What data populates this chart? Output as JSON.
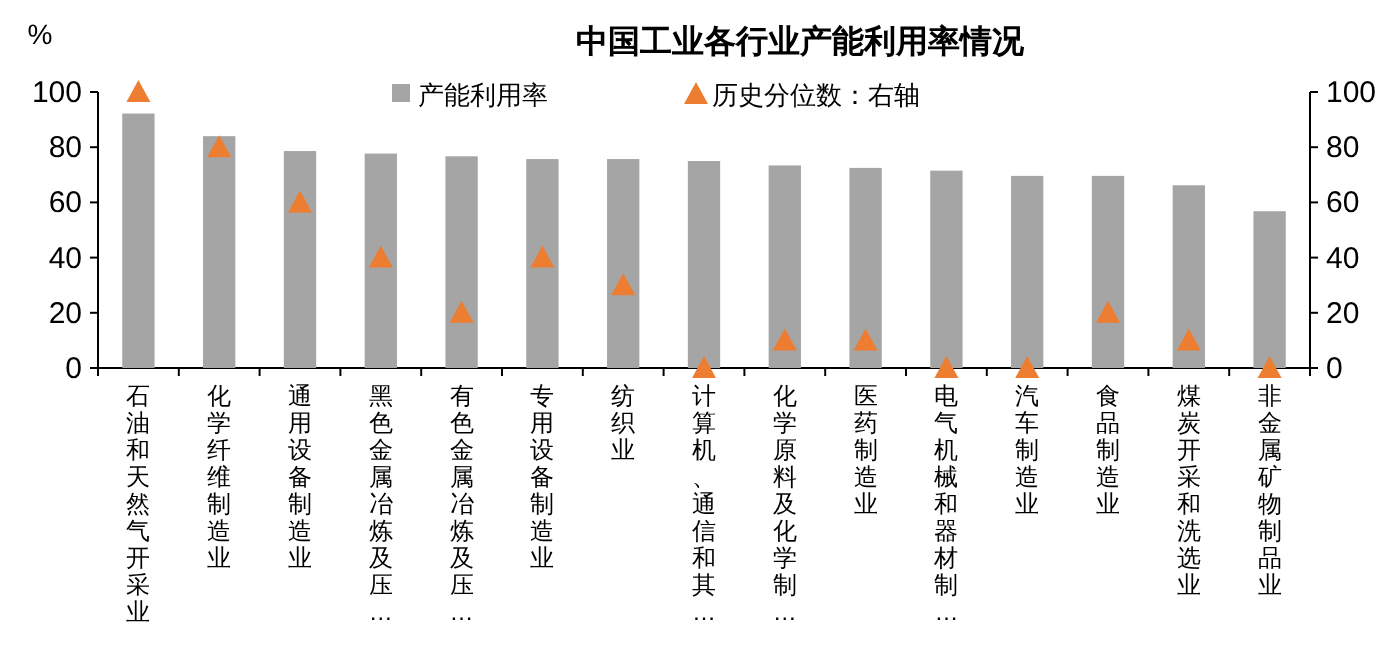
{
  "chart_data": {
    "type": "bar",
    "title": "中国工业各行业产能利用率情况",
    "ylabel": "%",
    "categories": [
      "石油和天然气开采业",
      "化学纤维制造业",
      "通用设备制造业",
      "黑色金属冶炼及压…",
      "有色金属冶炼及压…",
      "专用设备制造业",
      "纺织业",
      "计算机、通信和其…",
      "化学原料及化学制…",
      "医药制造业",
      "电气机械和器材制…",
      "汽车制造业",
      "食品制造业",
      "煤炭开采和洗选业",
      "非金属矿物制品业"
    ],
    "series": [
      {
        "name": "产能利用率",
        "color": "#a5a5a5",
        "values": [
          92.2,
          84,
          78.6,
          77.7,
          76.7,
          75.7,
          75.7,
          75,
          73.4,
          72.5,
          71.5,
          69.6,
          69.6,
          66.2,
          56.8
        ]
      },
      {
        "name": "历史分位数：右轴",
        "type": "scatter",
        "axis": "y2",
        "marker": "triangle",
        "color": "#ed7d31",
        "values": [
          100,
          80,
          60,
          40,
          20,
          40,
          30,
          0,
          10,
          10,
          0,
          0,
          20,
          10,
          0
        ]
      }
    ],
    "ylim": [
      0,
      100
    ],
    "yticks": [
      0,
      20,
      40,
      60,
      80,
      100
    ],
    "y2lim": [
      0,
      100
    ],
    "y2ticks": [
      0,
      20,
      40,
      60,
      80,
      100
    ],
    "legend": "top",
    "grid": false
  }
}
